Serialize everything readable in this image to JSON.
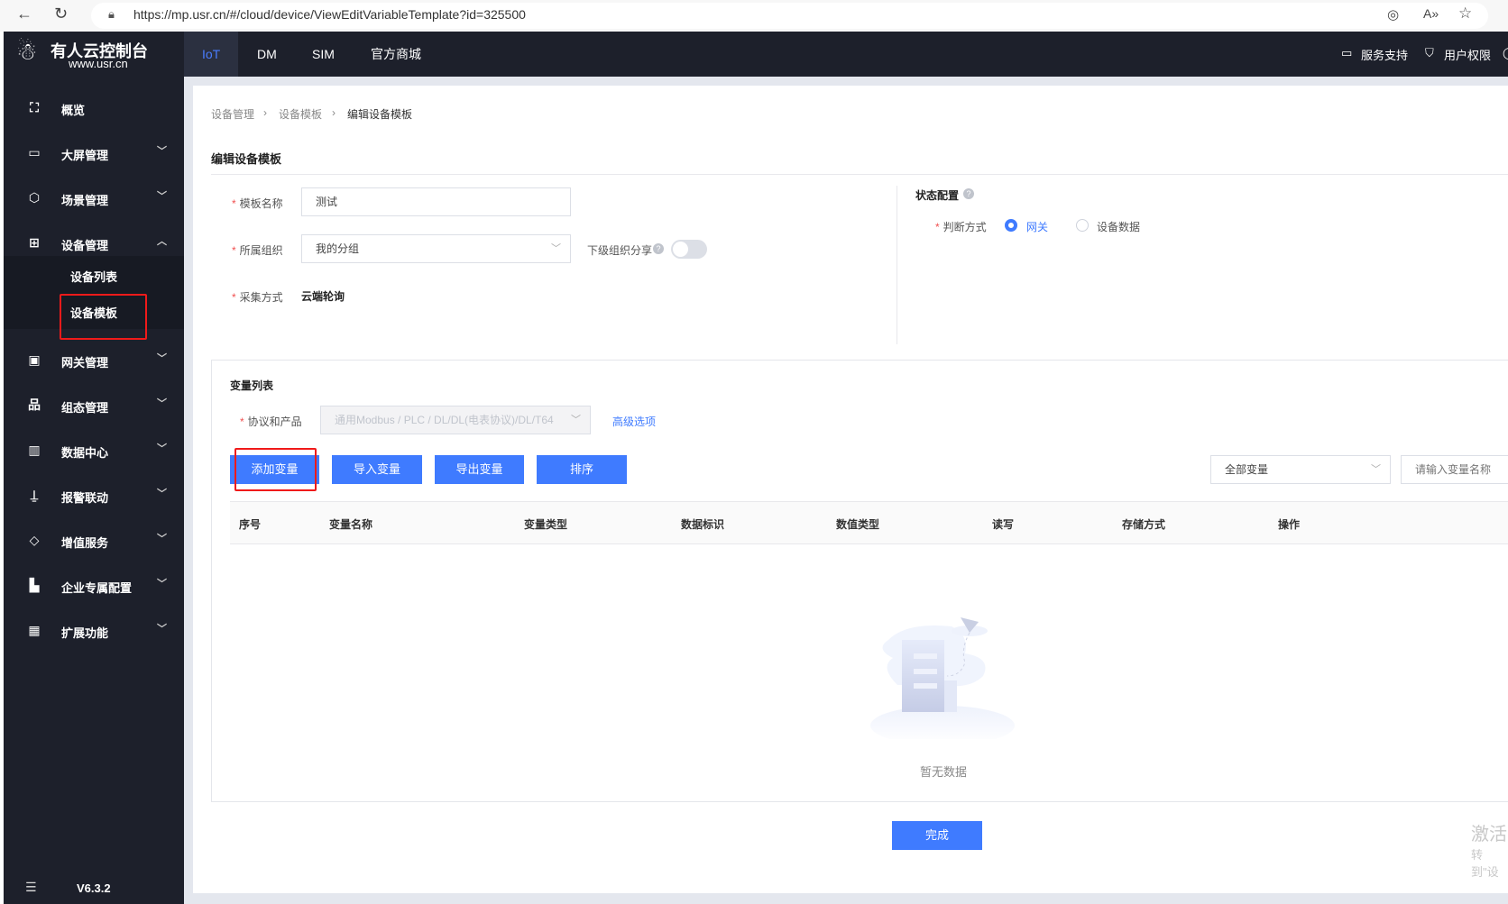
{
  "browser": {
    "url": "https://mp.usr.cn/#/cloud/device/ViewEditVariableTemplate?id=325500"
  },
  "logo": {
    "title": "有人云控制台",
    "subtitle": "www.usr.cn"
  },
  "topnav": {
    "tabs": [
      {
        "label": "IoT",
        "active": true
      },
      {
        "label": "DM"
      },
      {
        "label": "SIM"
      },
      {
        "label": "官方商城"
      }
    ],
    "support": "服务支持",
    "permissions": "用户权限"
  },
  "sidebar": {
    "items": [
      {
        "label": "概览",
        "icon": "scan-icon"
      },
      {
        "label": "大屏管理",
        "icon": "monitor-icon"
      },
      {
        "label": "场景管理",
        "icon": "cube-icon"
      },
      {
        "label": "设备管理",
        "icon": "device-icon",
        "expanded": true
      },
      {
        "label": "网关管理",
        "icon": "gateway-icon"
      },
      {
        "label": "组态管理",
        "icon": "hierarchy-icon"
      },
      {
        "label": "数据中心",
        "icon": "bar-chart-icon"
      },
      {
        "label": "报警联动",
        "icon": "alarm-icon"
      },
      {
        "label": "增值服务",
        "icon": "diamond-icon"
      },
      {
        "label": "企业专属配置",
        "icon": "building-icon"
      },
      {
        "label": "扩展功能",
        "icon": "grid-icon"
      }
    ],
    "subitems": [
      {
        "label": "设备列表"
      },
      {
        "label": "设备模板",
        "active": true
      }
    ],
    "version": "V6.3.2"
  },
  "breadcrumb": [
    "设备管理",
    "设备模板",
    "编辑设备模板"
  ],
  "page_title": "编辑设备模板",
  "form": {
    "name_label": "模板名称",
    "name_value": "测试",
    "org_label": "所属组织",
    "org_value": "我的分组",
    "share_label": "下级组织分享",
    "share_on": false,
    "collect_label": "采集方式",
    "collect_value": "云端轮询"
  },
  "status": {
    "title": "状态配置",
    "judge_label": "判断方式",
    "options": [
      {
        "label": "网关",
        "selected": true
      },
      {
        "label": "设备数据",
        "selected": false
      }
    ]
  },
  "variables": {
    "title": "变量列表",
    "protocol_label": "协议和产品",
    "protocol_value": "通用Modbus / PLC / DL/DL(电表协议)/DL/T64",
    "advanced": "高级选项",
    "buttons": [
      "添加变量",
      "导入变量",
      "导出变量",
      "排序"
    ],
    "filter_value": "全部变量",
    "search_placeholder": "请输入变量名称",
    "columns": [
      "序号",
      "变量名称",
      "变量类型",
      "数据标识",
      "数值类型",
      "读写",
      "存储方式",
      "操作"
    ],
    "empty_text": "暂无数据"
  },
  "finish_label": "完成",
  "watermark": {
    "line1": "激活",
    "line2": "转到\"设"
  },
  "colors": {
    "primary": "#3f7bff",
    "sidebar": "#1d202b",
    "highlight": "#f01a1a"
  }
}
